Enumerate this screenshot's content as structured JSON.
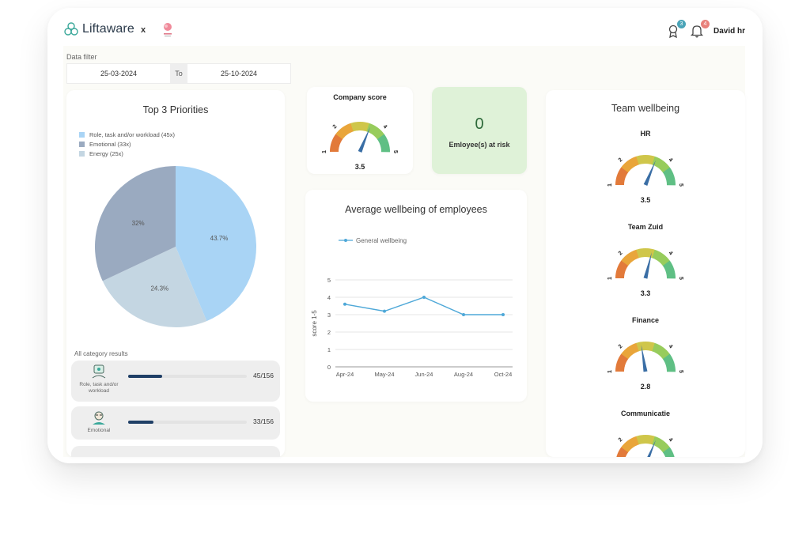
{
  "header": {
    "brand": "Liftaware",
    "separator": "x",
    "user_name": "David hr",
    "awards_badge": "3",
    "notifications_badge": "4"
  },
  "filter": {
    "label": "Data filter",
    "from": "25-03-2024",
    "to_label": "To",
    "to": "25-10-2024"
  },
  "priorities": {
    "title": "Top 3 Priorities",
    "legend": [
      {
        "label": "Role, task and/or workload (45x)",
        "color": "#a9d4f5"
      },
      {
        "label": "Emotional (33x)",
        "color": "#9aaac0"
      },
      {
        "label": "Energy (25x)",
        "color": "#c4d6e2"
      }
    ],
    "chart_data": {
      "type": "pie",
      "labels": [
        "Role, task and/or workload",
        "Energy",
        "Emotional"
      ],
      "values": [
        43.7,
        24.3,
        32
      ],
      "display": [
        "43.7%",
        "24.3%",
        "32%"
      ],
      "colors": [
        "#a9d4f5",
        "#c4d6e2",
        "#9aaac0"
      ]
    },
    "categories_label": "All category results",
    "categories": [
      {
        "name_line1": "Role, task and/or",
        "name_line2": "workload",
        "count": "45/156",
        "value": 45,
        "total": 156
      },
      {
        "name_line1": "Emotional",
        "name_line2": "",
        "count": "33/156",
        "value": 33,
        "total": 156
      }
    ]
  },
  "company_score": {
    "title": "Company score",
    "value": "3.5",
    "score": 3.5
  },
  "risk": {
    "count": "0",
    "label": "Emloyee(s) at risk"
  },
  "average": {
    "title": "Average wellbeing of employees",
    "chart_data": {
      "type": "line",
      "x": [
        "Apr-24",
        "May-24",
        "Jun-24",
        "Aug-24",
        "Oct-24"
      ],
      "series": [
        {
          "name": "General wellbeing",
          "values": [
            3.6,
            3.2,
            4.0,
            3.0,
            3.0
          ]
        }
      ],
      "ylabel": "score 1-5",
      "yticks": [
        "0",
        "1",
        "2",
        "3",
        "4",
        "5"
      ],
      "ylim": [
        0,
        5
      ],
      "grid": true,
      "legend": "top-left"
    }
  },
  "team": {
    "title": "Team wellbeing",
    "teams": [
      {
        "name": "HR",
        "value": "3.5",
        "score": 3.5
      },
      {
        "name": "Team Zuid",
        "value": "3.3",
        "score": 3.3
      },
      {
        "name": "Finance",
        "value": "2.8",
        "score": 2.8
      },
      {
        "name": "Communicatie",
        "value": "",
        "score": 3.5
      }
    ]
  },
  "gauge_ticks": [
    "1",
    "2",
    "4",
    "5"
  ]
}
